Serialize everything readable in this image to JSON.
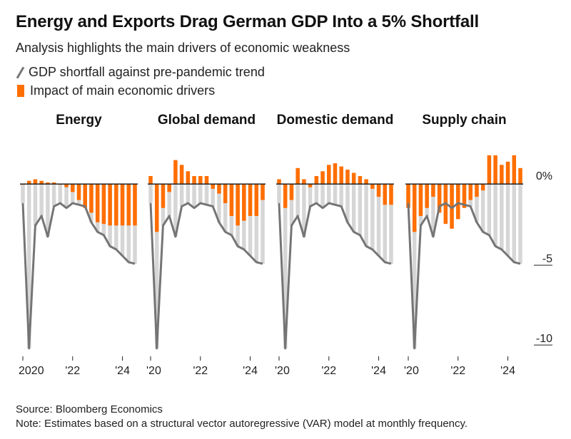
{
  "title": "Energy and Exports Drag German GDP Into a 5% Shortfall",
  "subtitle": "Analysis highlights the main drivers of economic weakness",
  "legend": {
    "line_label": "GDP shortfall against pre-pandemic trend",
    "bar_label": "Impact of main economic drivers"
  },
  "colors": {
    "driver": "#ff6e00",
    "gdp_bar": "#d6d6d6",
    "gdp_line": "#757575",
    "zero_line": "#222222"
  },
  "source": "Source: Bloomberg Economics",
  "note": "Note: Estimates based on a structural vector autoregressive (VAR) model at monthly frequency.",
  "chart_data": {
    "type": "bar",
    "y_axis": {
      "ticks": [
        0,
        -5,
        -10
      ],
      "tick_labels": [
        "0%",
        "-5",
        "-10"
      ],
      "ylim": [
        -10.8,
        2.6
      ]
    },
    "x_axis": {
      "ticks": [
        2020,
        2022,
        2024
      ]
    },
    "gdp_shortfall": {
      "x": [
        2020.0,
        2020.25,
        2020.5,
        2020.75,
        2021.0,
        2021.25,
        2021.5,
        2021.75,
        2022.0,
        2022.25,
        2022.5,
        2022.75,
        2023.0,
        2023.25,
        2023.5,
        2023.75,
        2024.0,
        2024.25,
        2024.5
      ],
      "values": [
        -1.2,
        -10.3,
        -2.6,
        -2.0,
        -3.3,
        -1.4,
        -1.2,
        -1.5,
        -1.2,
        -1.3,
        -1.4,
        -2.4,
        -3.0,
        -3.2,
        -3.9,
        -4.1,
        -4.5,
        -4.9,
        -5.0
      ]
    },
    "panels": [
      {
        "name": "Energy",
        "x_tick_labels": [
          "2020",
          "'22",
          "'24"
        ],
        "values": [
          0.0,
          0.2,
          0.3,
          0.2,
          0.1,
          0.1,
          0.0,
          -0.2,
          -0.5,
          -1.0,
          -1.5,
          -1.8,
          -2.4,
          -2.5,
          -2.6,
          -2.6,
          -2.6,
          -2.6,
          -2.6
        ]
      },
      {
        "name": "Global demand",
        "x_tick_labels": [
          "'20",
          "'22",
          "'24"
        ],
        "values": [
          0.5,
          -3.0,
          -1.5,
          -0.5,
          1.5,
          1.2,
          0.8,
          0.5,
          0.5,
          0.5,
          -0.3,
          -0.6,
          -1.2,
          -2.0,
          -2.6,
          -2.3,
          -2.0,
          -2.0,
          -1.0
        ]
      },
      {
        "name": "Domestic demand",
        "x_tick_labels": [
          "'20",
          "'22",
          "'24"
        ],
        "values": [
          0.3,
          -1.5,
          -1.0,
          1.0,
          0.3,
          -0.2,
          0.5,
          0.8,
          1.2,
          1.3,
          1.1,
          0.9,
          0.7,
          0.5,
          0.3,
          -0.3,
          -0.8,
          -1.3,
          -1.3
        ]
      },
      {
        "name": "Supply chain",
        "x_tick_labels": [
          "'20",
          "'22",
          "'24"
        ],
        "values": [
          -1.5,
          -3.0,
          -2.0,
          -1.5,
          -0.8,
          -1.8,
          -2.5,
          -2.8,
          -2.2,
          -1.5,
          -1.0,
          -0.8,
          -0.4,
          1.8,
          1.8,
          1.2,
          1.4,
          1.8,
          1.0
        ]
      }
    ]
  }
}
